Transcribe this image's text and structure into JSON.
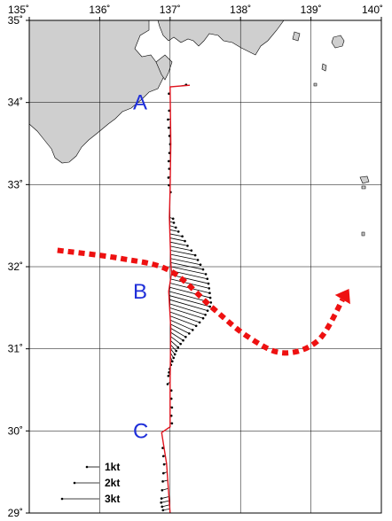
{
  "map": {
    "lon_range": [
      135,
      140
    ],
    "lat_range": [
      29,
      35
    ],
    "lon_ticks": [
      {
        "value": 135,
        "label": "135˚"
      },
      {
        "value": 136,
        "label": "136˚"
      },
      {
        "value": 137,
        "label": "137˚"
      },
      {
        "value": 138,
        "label": "138˚"
      },
      {
        "value": 139,
        "label": "139˚"
      },
      {
        "value": 140,
        "label": "140˚"
      }
    ],
    "lat_ticks": [
      {
        "value": 35,
        "label": "35˚"
      },
      {
        "value": 34,
        "label": "34˚"
      },
      {
        "value": 33,
        "label": "33˚"
      },
      {
        "value": 32,
        "label": "32˚"
      },
      {
        "value": 31,
        "label": "31˚"
      },
      {
        "value": 30,
        "label": "30˚"
      },
      {
        "value": 29,
        "label": "29˚"
      }
    ],
    "grid": true,
    "land_color": "#cfcfcf",
    "track_color": "#e0141e",
    "current_arrow_color": "#ee1111",
    "label_color": "#1f2fd9",
    "point_labels": [
      {
        "text": "A",
        "lon": 136.75,
        "lat": 34.0
      },
      {
        "text": "B",
        "lon": 136.75,
        "lat": 31.7
      },
      {
        "text": "C",
        "lon": 136.75,
        "lat": 30.0
      }
    ],
    "ship_track": [
      [
        137.28,
        34.21
      ],
      [
        137.0,
        34.19
      ],
      [
        137.01,
        33.5
      ],
      [
        137.0,
        32.95
      ],
      [
        136.99,
        32.6
      ],
      [
        137.01,
        32.05
      ],
      [
        137.02,
        31.92
      ],
      [
        136.98,
        31.7
      ],
      [
        137.01,
        31.25
      ],
      [
        137.0,
        30.6
      ],
      [
        137.0,
        30.05
      ],
      [
        136.88,
        29.98
      ],
      [
        136.95,
        29.6
      ],
      [
        137.0,
        29.0
      ]
    ],
    "current_vectors": [
      {
        "lat": 34.2,
        "u": 0.5,
        "v": 0.1
      },
      {
        "lat": 34.1,
        "u": -0.1,
        "v": 0.05
      },
      {
        "lat": 33.9,
        "u": -0.1,
        "v": 0.0
      },
      {
        "lat": 33.8,
        "u": -0.2,
        "v": -0.05
      },
      {
        "lat": 33.7,
        "u": -0.15,
        "v": -0.05
      },
      {
        "lat": 33.6,
        "u": -0.1,
        "v": -0.05
      },
      {
        "lat": 33.5,
        "u": -0.05,
        "v": -0.05
      },
      {
        "lat": 33.4,
        "u": -0.1,
        "v": -0.1
      },
      {
        "lat": 33.3,
        "u": -0.15,
        "v": -0.1
      },
      {
        "lat": 33.2,
        "u": -0.1,
        "v": -0.05
      },
      {
        "lat": 33.1,
        "u": -0.15,
        "v": -0.1
      },
      {
        "lat": 33.0,
        "u": -0.1,
        "v": -0.05
      },
      {
        "lat": 32.9,
        "u": 0.05,
        "v": 0.05
      },
      {
        "lat": 32.6,
        "u": 0.3,
        "v": -0.1
      },
      {
        "lat": 32.55,
        "u": 0.35,
        "v": -0.1
      },
      {
        "lat": 32.5,
        "u": 0.5,
        "v": -0.15
      },
      {
        "lat": 32.45,
        "u": 0.7,
        "v": -0.15
      },
      {
        "lat": 32.4,
        "u": 1.0,
        "v": -0.2
      },
      {
        "lat": 32.35,
        "u": 1.2,
        "v": -0.25
      },
      {
        "lat": 32.3,
        "u": 1.4,
        "v": -0.3
      },
      {
        "lat": 32.25,
        "u": 1.7,
        "v": -0.35
      },
      {
        "lat": 32.2,
        "u": 2.0,
        "v": -0.4
      },
      {
        "lat": 32.15,
        "u": 2.2,
        "v": -0.45
      },
      {
        "lat": 32.1,
        "u": 2.4,
        "v": -0.5
      },
      {
        "lat": 32.05,
        "u": 2.6,
        "v": -0.55
      },
      {
        "lat": 32.0,
        "u": 2.8,
        "v": -0.6
      },
      {
        "lat": 31.95,
        "u": 2.9,
        "v": -0.65
      },
      {
        "lat": 31.9,
        "u": 3.0,
        "v": -0.7
      },
      {
        "lat": 31.85,
        "u": 3.1,
        "v": -0.75
      },
      {
        "lat": 31.8,
        "u": 3.2,
        "v": -0.8
      },
      {
        "lat": 31.75,
        "u": 3.3,
        "v": -0.85
      },
      {
        "lat": 31.7,
        "u": 3.4,
        "v": -0.9
      },
      {
        "lat": 31.65,
        "u": 3.3,
        "v": -0.9
      },
      {
        "lat": 31.6,
        "u": 3.1,
        "v": -0.9
      },
      {
        "lat": 31.55,
        "u": 2.9,
        "v": -0.9
      },
      {
        "lat": 31.5,
        "u": 2.7,
        "v": -0.85
      },
      {
        "lat": 31.45,
        "u": 2.4,
        "v": -0.85
      },
      {
        "lat": 31.4,
        "u": 2.1,
        "v": -0.8
      },
      {
        "lat": 31.35,
        "u": 1.8,
        "v": -0.8
      },
      {
        "lat": 31.3,
        "u": 1.5,
        "v": -0.75
      },
      {
        "lat": 31.25,
        "u": 1.2,
        "v": -0.7
      },
      {
        "lat": 31.2,
        "u": 1.0,
        "v": -0.65
      },
      {
        "lat": 31.15,
        "u": 0.8,
        "v": -0.6
      },
      {
        "lat": 31.1,
        "u": 0.6,
        "v": -0.55
      },
      {
        "lat": 31.05,
        "u": 0.45,
        "v": -0.5
      },
      {
        "lat": 31.0,
        "u": 0.35,
        "v": -0.45
      },
      {
        "lat": 30.95,
        "u": 0.25,
        "v": -0.4
      },
      {
        "lat": 30.9,
        "u": 0.15,
        "v": -0.35
      },
      {
        "lat": 30.85,
        "u": 0.05,
        "v": -0.3
      },
      {
        "lat": 30.8,
        "u": -0.05,
        "v": -0.3
      },
      {
        "lat": 30.75,
        "u": -0.1,
        "v": -0.25
      },
      {
        "lat": 30.7,
        "u": -0.15,
        "v": -0.2
      },
      {
        "lat": 30.6,
        "u": -0.2,
        "v": -0.2
      },
      {
        "lat": 30.5,
        "u": 0.1,
        "v": -0.05
      },
      {
        "lat": 30.4,
        "u": 0.1,
        "v": -0.05
      },
      {
        "lat": 30.3,
        "u": 0.15,
        "v": -0.1
      },
      {
        "lat": 30.2,
        "u": 0.1,
        "v": -0.1
      },
      {
        "lat": 30.1,
        "u": 0.15,
        "v": -0.05
      },
      {
        "lat": 29.8,
        "u": -0.1,
        "v": -0.05
      },
      {
        "lat": 29.7,
        "u": -0.15,
        "v": -0.05
      },
      {
        "lat": 29.6,
        "u": -0.2,
        "v": -0.05
      },
      {
        "lat": 29.5,
        "u": -0.3,
        "v": -0.1
      },
      {
        "lat": 29.4,
        "u": -0.4,
        "v": -0.1
      },
      {
        "lat": 29.3,
        "u": -0.5,
        "v": -0.15
      },
      {
        "lat": 29.2,
        "u": -0.6,
        "v": -0.15
      },
      {
        "lat": 29.15,
        "u": -0.65,
        "v": -0.15
      },
      {
        "lat": 29.1,
        "u": -0.6,
        "v": -0.15
      },
      {
        "lat": 29.05,
        "u": -0.55,
        "v": -0.1
      }
    ],
    "kuroshio_path": [
      [
        135.4,
        32.2
      ],
      [
        136.3,
        32.1
      ],
      [
        137.0,
        31.95
      ],
      [
        137.6,
        31.5
      ],
      [
        138.1,
        31.15
      ],
      [
        138.6,
        30.95
      ],
      [
        139.1,
        31.1
      ],
      [
        139.45,
        31.6
      ]
    ],
    "legend": [
      {
        "speed": 1,
        "label": "1kt"
      },
      {
        "speed": 2,
        "label": "2kt"
      },
      {
        "speed": 3,
        "label": "3kt"
      }
    ]
  }
}
